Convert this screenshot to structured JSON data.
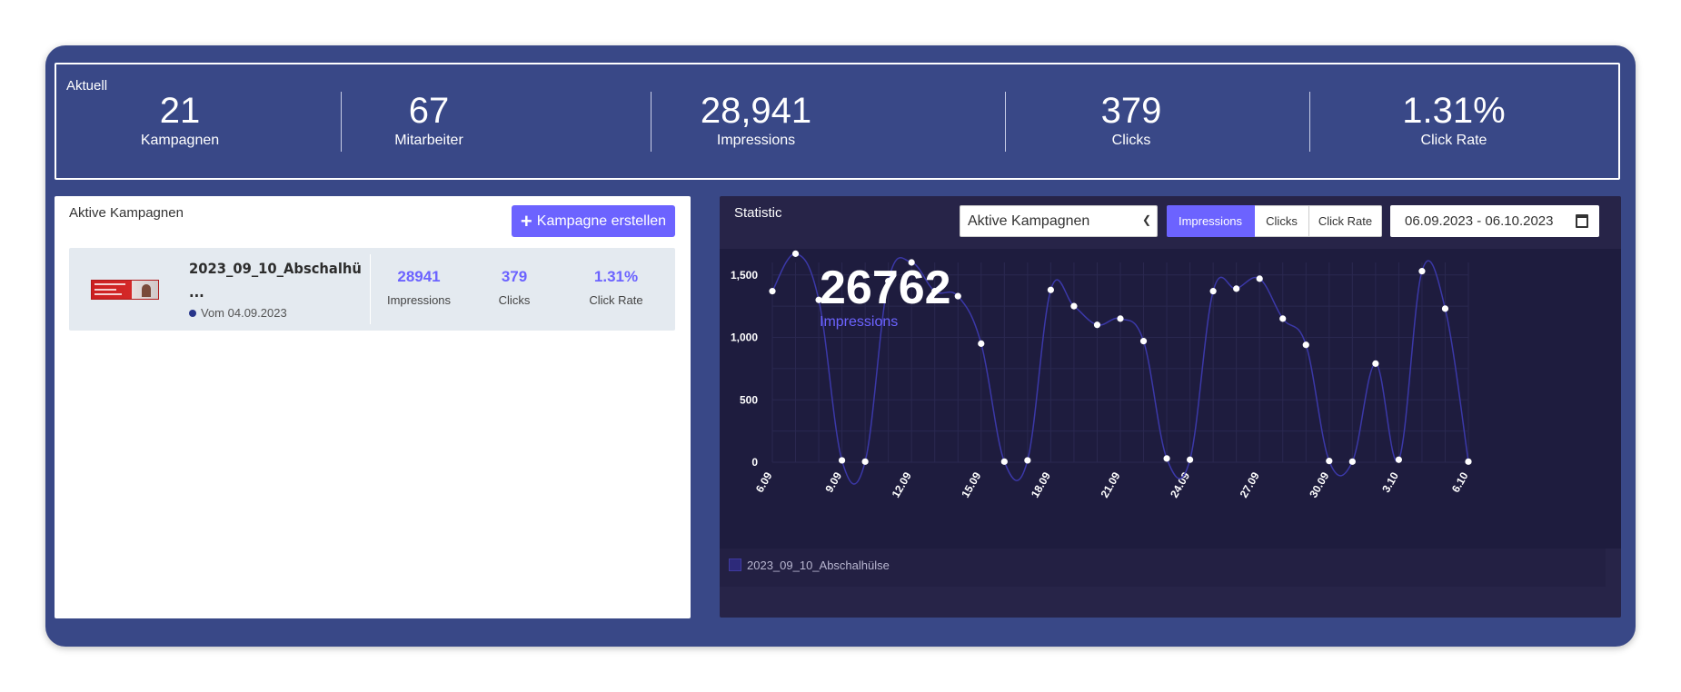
{
  "kpis": {
    "title": "Aktuell",
    "items": [
      {
        "value": "21",
        "label": "Kampagnen"
      },
      {
        "value": "67",
        "label": "Mitarbeiter"
      },
      {
        "value": "28,941",
        "label": "Impressions"
      },
      {
        "value": "379",
        "label": "Clicks"
      },
      {
        "value": "1.31%",
        "label": "Click Rate"
      }
    ]
  },
  "campaigns": {
    "title": "Aktive Kampagnen",
    "create_label": "Kampagne erstellen",
    "rows": [
      {
        "name": "2023_09_10_Abschalhü ...",
        "date": "Vom 04.09.2023",
        "impressions": "28941",
        "impressions_label": "Impressions",
        "clicks": "379",
        "clicks_label": "Clicks",
        "click_rate": "1.31%",
        "click_rate_label": "Click Rate"
      }
    ]
  },
  "statistic": {
    "title": "Statistic",
    "select_value": "Aktive Kampagnen",
    "tabs": [
      "Impressions",
      "Clicks",
      "Click Rate"
    ],
    "active_tab": "Impressions",
    "date_range": "06.09.2023 - 06.10.2023",
    "big_value": "26762",
    "big_label": "Impressions",
    "legend": "2023_09_10_Abschalhülse"
  },
  "chart_data": {
    "type": "line",
    "ylim": [
      0,
      1600
    ],
    "yticks": [
      "0",
      "500",
      "1,000",
      "1,500"
    ],
    "ytick_values": [
      0,
      500,
      1000,
      1500
    ],
    "x": [
      "6.09",
      "7.09",
      "8.09",
      "9.09",
      "10.09",
      "11.09",
      "12.09",
      "13.09",
      "14.09",
      "15.09",
      "16.09",
      "17.09",
      "18.09",
      "19.09",
      "20.09",
      "21.09",
      "22.09",
      "23.09",
      "24.09",
      "25.09",
      "26.09",
      "27.09",
      "28.09",
      "29.09",
      "30.09",
      "1.10",
      "2.10",
      "3.10",
      "4.10",
      "5.10",
      "6.10"
    ],
    "xtick_labels": [
      "6.09",
      "9.09",
      "12.09",
      "15.09",
      "18.09",
      "21.09",
      "24.09",
      "27.09",
      "30.09",
      "3.10",
      "6.10"
    ],
    "series": [
      {
        "name": "2023_09_10_Abschalhülse",
        "values": [
          1370,
          1670,
          1300,
          15,
          5,
          1450,
          1600,
          1370,
          1330,
          950,
          5,
          15,
          1380,
          1250,
          1100,
          1150,
          970,
          30,
          20,
          1370,
          1390,
          1470,
          1150,
          940,
          10,
          5,
          790,
          20,
          1530,
          1230,
          5
        ]
      }
    ],
    "colors": {
      "line": "#3b38a8",
      "point": "#ffffff"
    }
  }
}
